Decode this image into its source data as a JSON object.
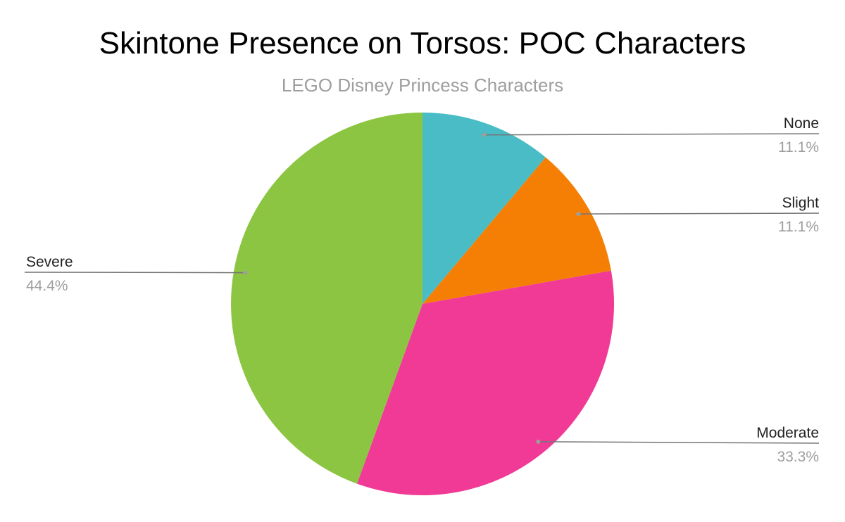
{
  "chart_data": {
    "type": "pie",
    "title": "Skintone Presence on Torsos: POC Characters",
    "subtitle": "LEGO Disney Princess Characters",
    "start_angle_deg": 0,
    "direction": "clockwise",
    "slices": [
      {
        "label": "None",
        "value": 11.1,
        "display": "11.1%",
        "color": "#4abcc5"
      },
      {
        "label": "Slight",
        "value": 11.1,
        "display": "11.1%",
        "color": "#f57f05"
      },
      {
        "label": "Moderate",
        "value": 33.3,
        "display": "33.3%",
        "color": "#f03a96"
      },
      {
        "label": "Severe",
        "value": 44.4,
        "display": "44.4%",
        "color": "#8cc541"
      }
    ],
    "legend": "none",
    "labels": "outside-with-leader-lines"
  }
}
